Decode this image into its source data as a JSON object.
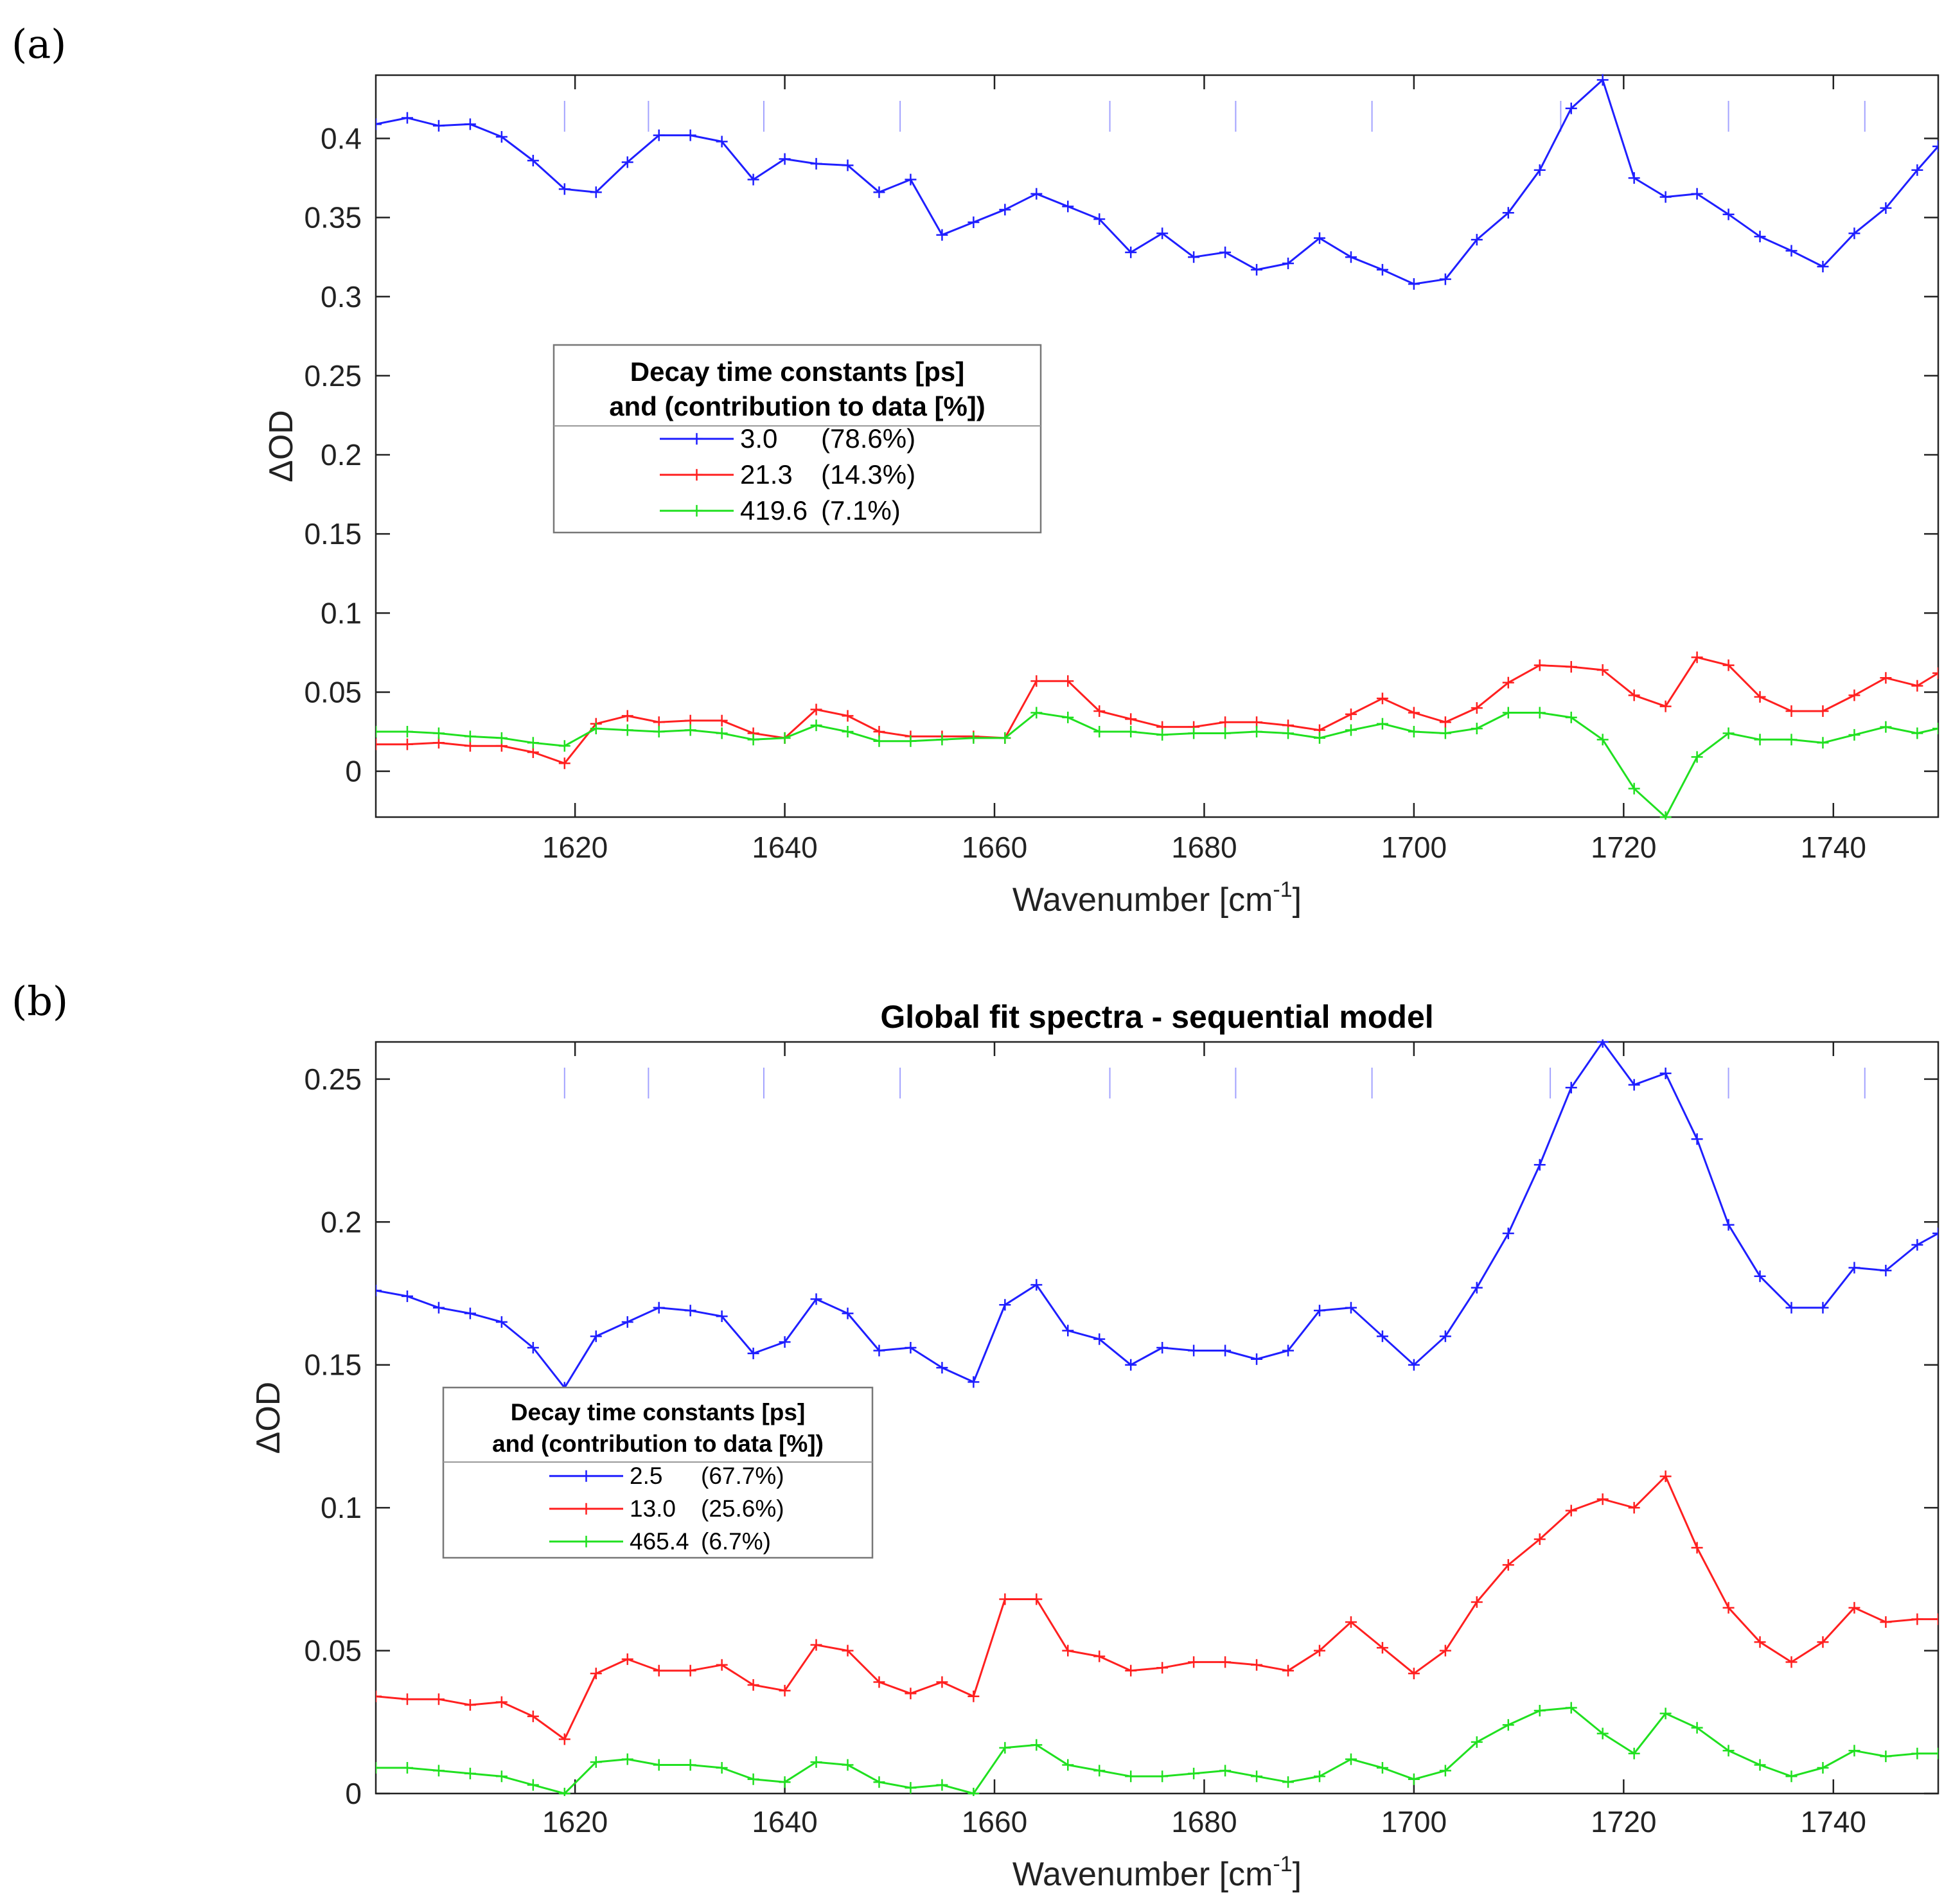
{
  "chart_data": [
    {
      "panel": "(a)",
      "type": "line",
      "title": "",
      "xlabel": "Wavenumber [cm",
      "xlabel_sup": "-1",
      "xlabel_end": "]",
      "ylabel": "ΔOD",
      "xlim": [
        1601,
        1750
      ],
      "ylim": [
        -0.029,
        0.44
      ],
      "xticks": [
        1620,
        1640,
        1660,
        1680,
        1700,
        1720,
        1740
      ],
      "xtick_labels": [
        "1620",
        "1640",
        "1660",
        "1680",
        "1700",
        "1720",
        "1740"
      ],
      "yticks": [
        0,
        0.05,
        0.1,
        0.15,
        0.2,
        0.25,
        0.3,
        0.35,
        0.4
      ],
      "ytick_labels": [
        "0",
        "0.05",
        "0.1",
        "0.15",
        "0.2",
        "0.25",
        "0.3",
        "0.35",
        "0.4"
      ],
      "top_marks": [
        1619,
        1627,
        1638,
        1651,
        1671,
        1683,
        1696,
        1714,
        1730,
        1743
      ],
      "legend": {
        "title_line1": "Decay time constants [ps]",
        "title_line2": "and (contribution to data [%])",
        "entries": [
          {
            "tau": "3.0",
            "contribution": "(78.6%)"
          },
          {
            "tau": "21.3",
            "contribution": "(14.3%)"
          },
          {
            "tau": "419.6",
            "contribution": "(7.1%)"
          }
        ]
      },
      "x": [
        1601,
        1604,
        1607,
        1610,
        1613,
        1616,
        1619,
        1622,
        1625,
        1628,
        1631,
        1634,
        1637,
        1640,
        1643,
        1646,
        1649,
        1652,
        1655,
        1658,
        1661,
        1664,
        1667,
        1670,
        1673,
        1676,
        1679,
        1682,
        1685,
        1688,
        1691,
        1694,
        1697,
        1700,
        1703,
        1706,
        1709,
        1712,
        1715,
        1718,
        1721,
        1724,
        1727,
        1730,
        1733,
        1736,
        1739,
        1742,
        1745,
        1748,
        1750
      ],
      "series": [
        {
          "name": "3.0",
          "color": "#1f1fff",
          "values": [
            0.409,
            0.413,
            0.408,
            0.409,
            0.401,
            0.386,
            0.368,
            0.366,
            0.385,
            0.402,
            0.402,
            0.398,
            0.374,
            0.387,
            0.384,
            0.383,
            0.366,
            0.374,
            0.339,
            0.347,
            0.355,
            0.365,
            0.357,
            0.349,
            0.328,
            0.34,
            0.325,
            0.328,
            0.317,
            0.321,
            0.337,
            0.325,
            0.317,
            0.308,
            0.311,
            0.336,
            0.353,
            0.38,
            0.419,
            0.437,
            0.375,
            0.363,
            0.365,
            0.352,
            0.338,
            0.329,
            0.319,
            0.34,
            0.356,
            0.38,
            0.395
          ]
        },
        {
          "name": "21.3",
          "color": "#ff2020",
          "values": [
            0.017,
            0.017,
            0.018,
            0.016,
            0.016,
            0.012,
            0.005,
            0.03,
            0.035,
            0.031,
            0.032,
            0.032,
            0.024,
            0.021,
            0.039,
            0.035,
            0.025,
            0.022,
            0.022,
            0.022,
            0.021,
            0.057,
            0.057,
            0.038,
            0.033,
            0.028,
            0.028,
            0.031,
            0.031,
            0.029,
            0.026,
            0.036,
            0.046,
            0.037,
            0.031,
            0.04,
            0.056,
            0.067,
            0.066,
            0.064,
            0.048,
            0.041,
            0.072,
            0.067,
            0.047,
            0.038,
            0.038,
            0.048,
            0.059,
            0.054,
            0.062
          ]
        },
        {
          "name": "419.6",
          "color": "#20e020",
          "values": [
            0.025,
            0.025,
            0.024,
            0.022,
            0.021,
            0.018,
            0.016,
            0.027,
            0.026,
            0.025,
            0.026,
            0.024,
            0.02,
            0.021,
            0.029,
            0.025,
            0.019,
            0.019,
            0.02,
            0.021,
            0.021,
            0.037,
            0.034,
            0.025,
            0.025,
            0.023,
            0.024,
            0.024,
            0.025,
            0.024,
            0.021,
            0.026,
            0.03,
            0.025,
            0.024,
            0.027,
            0.037,
            0.037,
            0.034,
            0.02,
            -0.011,
            -0.029,
            0.009,
            0.024,
            0.02,
            0.02,
            0.018,
            0.023,
            0.028,
            0.024,
            0.027
          ]
        }
      ]
    },
    {
      "panel": "(b)",
      "type": "line",
      "title": "Global fit spectra - sequential model",
      "xlabel": "Wavenumber [cm",
      "xlabel_sup": "-1",
      "xlabel_end": "]",
      "ylabel": "ΔOD",
      "xlim": [
        1601,
        1750
      ],
      "ylim": [
        0,
        0.263
      ],
      "xticks": [
        1620,
        1640,
        1660,
        1680,
        1700,
        1720,
        1740
      ],
      "xtick_labels": [
        "1620",
        "1640",
        "1660",
        "1680",
        "1700",
        "1720",
        "1740"
      ],
      "yticks": [
        0,
        0.05,
        0.1,
        0.15,
        0.2,
        0.25
      ],
      "ytick_labels": [
        "0",
        "0.05",
        "0.1",
        "0.15",
        "0.2",
        "0.25"
      ],
      "top_marks": [
        1619,
        1627,
        1638,
        1651,
        1671,
        1683,
        1696,
        1713,
        1730,
        1743
      ],
      "legend": {
        "title_line1": "Decay time constants [ps]",
        "title_line2": "and (contribution to data [%])",
        "entries": [
          {
            "tau": "2.5",
            "contribution": "(67.7%)"
          },
          {
            "tau": "13.0",
            "contribution": "(25.6%)"
          },
          {
            "tau": "465.4",
            "contribution": "(6.7%)"
          }
        ]
      },
      "x": [
        1601,
        1604,
        1607,
        1610,
        1613,
        1616,
        1619,
        1622,
        1625,
        1628,
        1631,
        1634,
        1637,
        1640,
        1643,
        1646,
        1649,
        1652,
        1655,
        1658,
        1661,
        1664,
        1667,
        1670,
        1673,
        1676,
        1679,
        1682,
        1685,
        1688,
        1691,
        1694,
        1697,
        1700,
        1703,
        1706,
        1709,
        1712,
        1715,
        1718,
        1721,
        1724,
        1727,
        1730,
        1733,
        1736,
        1739,
        1742,
        1745,
        1748,
        1750
      ],
      "series": [
        {
          "name": "2.5",
          "color": "#1f1fff",
          "values": [
            0.176,
            0.174,
            0.17,
            0.168,
            0.165,
            0.156,
            0.142,
            0.16,
            0.165,
            0.17,
            0.169,
            0.167,
            0.154,
            0.158,
            0.173,
            0.168,
            0.155,
            0.156,
            0.149,
            0.144,
            0.171,
            0.178,
            0.162,
            0.159,
            0.15,
            0.156,
            0.155,
            0.155,
            0.152,
            0.155,
            0.169,
            0.17,
            0.16,
            0.15,
            0.16,
            0.177,
            0.196,
            0.22,
            0.247,
            0.263,
            0.248,
            0.252,
            0.229,
            0.199,
            0.181,
            0.17,
            0.17,
            0.184,
            0.183,
            0.192,
            0.196
          ]
        },
        {
          "name": "13.0",
          "color": "#ff2020",
          "values": [
            0.034,
            0.033,
            0.033,
            0.031,
            0.032,
            0.027,
            0.019,
            0.042,
            0.047,
            0.043,
            0.043,
            0.045,
            0.038,
            0.036,
            0.052,
            0.05,
            0.039,
            0.035,
            0.039,
            0.034,
            0.068,
            0.068,
            0.05,
            0.048,
            0.043,
            0.044,
            0.046,
            0.046,
            0.045,
            0.043,
            0.05,
            0.06,
            0.051,
            0.042,
            0.05,
            0.067,
            0.08,
            0.089,
            0.099,
            0.103,
            0.1,
            0.111,
            0.086,
            0.065,
            0.053,
            0.046,
            0.053,
            0.065,
            0.06,
            0.061,
            0.061
          ]
        },
        {
          "name": "465.4",
          "color": "#20e020",
          "values": [
            0.009,
            0.009,
            0.008,
            0.007,
            0.006,
            0.003,
            0.0,
            0.011,
            0.012,
            0.01,
            0.01,
            0.009,
            0.005,
            0.004,
            0.011,
            0.01,
            0.004,
            0.002,
            0.003,
            0.0,
            0.016,
            0.017,
            0.01,
            0.008,
            0.006,
            0.006,
            0.007,
            0.008,
            0.006,
            0.004,
            0.006,
            0.012,
            0.009,
            0.005,
            0.008,
            0.018,
            0.024,
            0.029,
            0.03,
            0.021,
            0.014,
            0.028,
            0.023,
            0.015,
            0.01,
            0.006,
            0.009,
            0.015,
            0.013,
            0.014,
            0.014
          ]
        }
      ]
    }
  ]
}
